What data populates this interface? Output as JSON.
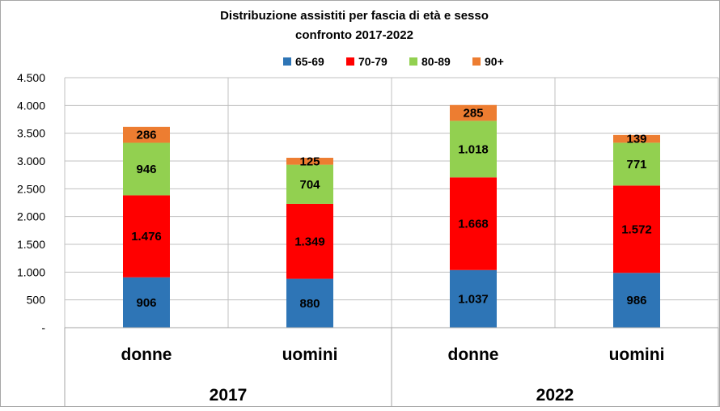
{
  "chart_data": {
    "type": "bar",
    "stacked": true,
    "title": "Distribuzione  assistiti  per fascia di età e sesso",
    "subtitle": "confronto 2017-2022",
    "groups": [
      {
        "label": "2017",
        "categories": [
          "donne",
          "uomini"
        ]
      },
      {
        "label": "2022",
        "categories": [
          "donne",
          "uomini"
        ]
      }
    ],
    "categories": [
      "donne",
      "uomini",
      "donne",
      "uomini"
    ],
    "series": [
      {
        "name": "65-69",
        "color": "#2E75B6",
        "values": [
          906,
          880,
          1037,
          986
        ],
        "labels": [
          "906",
          "880",
          "1.037",
          "986"
        ]
      },
      {
        "name": "70-79",
        "color": "#FF0000",
        "values": [
          1476,
          1349,
          1668,
          1572
        ],
        "labels": [
          "1.476",
          "1.349",
          "1.668",
          "1.572"
        ]
      },
      {
        "name": "80-89",
        "color": "#92D050",
        "values": [
          946,
          704,
          1018,
          771
        ],
        "labels": [
          "946",
          "704",
          "1.018",
          "771"
        ]
      },
      {
        "name": "90+",
        "color": "#ED7D31",
        "values": [
          286,
          125,
          285,
          139
        ],
        "labels": [
          "286",
          "125",
          "285",
          "139"
        ]
      }
    ],
    "ylim": [
      0,
      4500
    ],
    "yticks": [
      0,
      500,
      1000,
      1500,
      2000,
      2500,
      3000,
      3500,
      4000,
      4500
    ],
    "ytick_labels": [
      "-",
      "500",
      "1.000",
      "1.500",
      "2.000",
      "2.500",
      "3.000",
      "3.500",
      "4.000",
      "4.500"
    ],
    "legend_position": "top",
    "grid": true
  }
}
